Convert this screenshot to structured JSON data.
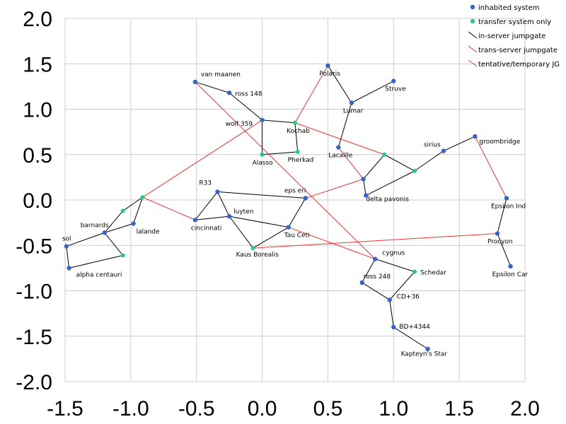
{
  "chart_data": {
    "type": "scatter",
    "title": "",
    "xlabel": "",
    "ylabel": "",
    "xlim": [
      -1.5,
      2.0
    ],
    "ylim": [
      -2.0,
      2.0
    ],
    "grid": true,
    "legend_placement": "top-right",
    "x_ticks": [
      "-1.5",
      "-1.0",
      "-0.5",
      "0.0",
      "0.5",
      "1.0",
      "1.5",
      "2.0"
    ],
    "y_ticks": [
      "2.0",
      "1.5",
      "1.0",
      "0.5",
      "0.0",
      "-0.5",
      "-1.0",
      "-1.5",
      "-2.0"
    ],
    "x_tick_values": [
      -1.5,
      -1.0,
      -0.5,
      0.0,
      0.5,
      1.0,
      1.5,
      2.0
    ],
    "y_tick_values": [
      2.0,
      1.5,
      1.0,
      0.5,
      0.0,
      -0.5,
      -1.0,
      -1.5,
      -2.0
    ],
    "legend": [
      {
        "label": "inhabited system",
        "kind": "inhabited"
      },
      {
        "label": "transfer system only",
        "kind": "transfer"
      },
      {
        "label": "in-server jumpgate",
        "kind": "in-server"
      },
      {
        "label": "trans-server jumpgate",
        "kind": "trans-server"
      },
      {
        "label": "tentative/temporary JG",
        "kind": "tentative"
      }
    ],
    "colors": {
      "inhabited": "#3366cc",
      "transfer": "#22cc88",
      "in-server": "#000000",
      "trans-server": "#ee3333",
      "tentative": "#cc33cc",
      "grid": "#cccccc"
    },
    "nodes": [
      {
        "id": "van-maanen",
        "label": "van maanen",
        "x": -0.51,
        "y": 1.3,
        "kind": "inhabited"
      },
      {
        "id": "ross-148",
        "label": "ross 148",
        "x": -0.25,
        "y": 1.18,
        "kind": "inhabited"
      },
      {
        "id": "wolf-359",
        "label": "wolf 359",
        "x": 0.0,
        "y": 0.88,
        "kind": "inhabited"
      },
      {
        "id": "kochab",
        "label": "Kochab",
        "x": 0.25,
        "y": 0.85,
        "kind": "transfer"
      },
      {
        "id": "alasso",
        "label": "Alasso",
        "x": 0.0,
        "y": 0.5,
        "kind": "transfer"
      },
      {
        "id": "pherkad",
        "label": "Pherkad",
        "x": 0.27,
        "y": 0.53,
        "kind": "transfer"
      },
      {
        "id": "polaris",
        "label": "Polaris",
        "x": 0.5,
        "y": 1.48,
        "kind": "inhabited"
      },
      {
        "id": "lumar",
        "label": "Lumar",
        "x": 0.68,
        "y": 1.07,
        "kind": "inhabited"
      },
      {
        "id": "struve",
        "label": "Struve",
        "x": 1.0,
        "y": 1.31,
        "kind": "inhabited"
      },
      {
        "id": "lacaille",
        "label": "Lacaille",
        "x": 0.58,
        "y": 0.58,
        "kind": "inhabited"
      },
      {
        "id": "sirius",
        "label": "sirius",
        "x": 1.38,
        "y": 0.54,
        "kind": "inhabited"
      },
      {
        "id": "groombridge",
        "label": "groombridge",
        "x": 1.62,
        "y": 0.7,
        "kind": "inhabited"
      },
      {
        "id": "junction-a",
        "label": "",
        "x": 0.93,
        "y": 0.5,
        "kind": "transfer"
      },
      {
        "id": "junction-b",
        "label": "",
        "x": 1.16,
        "y": 0.32,
        "kind": "transfer"
      },
      {
        "id": "delta-pavonis-hub",
        "label": "",
        "x": 0.77,
        "y": 0.23,
        "kind": "inhabited"
      },
      {
        "id": "delta-pavonis",
        "label": "delta pavonis",
        "x": 0.79,
        "y": 0.05,
        "kind": "inhabited"
      },
      {
        "id": "epsilon-ind",
        "label": "Epsilon Ind",
        "x": 1.86,
        "y": 0.02,
        "kind": "inhabited"
      },
      {
        "id": "procyon",
        "label": "Procyon",
        "x": 1.79,
        "y": -0.37,
        "kind": "inhabited"
      },
      {
        "id": "epsilon-car",
        "label": "Epsilon Car",
        "x": 1.89,
        "y": -0.73,
        "kind": "inhabited"
      },
      {
        "id": "r33",
        "label": "R33",
        "x": -0.34,
        "y": 0.09,
        "kind": "inhabited"
      },
      {
        "id": "eps-eri",
        "label": "eps eri",
        "x": 0.33,
        "y": 0.02,
        "kind": "inhabited"
      },
      {
        "id": "luyten",
        "label": "luyten",
        "x": -0.25,
        "y": -0.18,
        "kind": "inhabited"
      },
      {
        "id": "cincinnati",
        "label": "cincinnati",
        "x": -0.51,
        "y": -0.22,
        "kind": "inhabited"
      },
      {
        "id": "tau-ceti",
        "label": "Tau Ceti",
        "x": 0.2,
        "y": -0.3,
        "kind": "inhabited"
      },
      {
        "id": "kaus-borealis",
        "label": "Kaus Borealis",
        "x": -0.07,
        "y": -0.53,
        "kind": "transfer"
      },
      {
        "id": "west-hub",
        "label": "",
        "x": -0.91,
        "y": 0.03,
        "kind": "transfer"
      },
      {
        "id": "west-transfer",
        "label": "",
        "x": -1.06,
        "y": -0.12,
        "kind": "transfer"
      },
      {
        "id": "lalande",
        "label": "lalande",
        "x": -0.98,
        "y": -0.26,
        "kind": "inhabited"
      },
      {
        "id": "barnards",
        "label": "barnards",
        "x": -1.2,
        "y": -0.36,
        "kind": "inhabited"
      },
      {
        "id": "sol",
        "label": "sol",
        "x": -1.49,
        "y": -0.51,
        "kind": "inhabited"
      },
      {
        "id": "south-transfer",
        "label": "",
        "x": -1.06,
        "y": -0.61,
        "kind": "transfer"
      },
      {
        "id": "alpha-centauri",
        "label": "alpha centauri",
        "x": -1.47,
        "y": -0.75,
        "kind": "inhabited"
      },
      {
        "id": "cygnus",
        "label": "cygnus",
        "x": 0.86,
        "y": -0.65,
        "kind": "inhabited"
      },
      {
        "id": "schedar",
        "label": "Schedar",
        "x": 1.16,
        "y": -0.79,
        "kind": "transfer"
      },
      {
        "id": "ross-248",
        "label": "ross 248",
        "x": 0.76,
        "y": -0.91,
        "kind": "inhabited"
      },
      {
        "id": "cd-36",
        "label": "CD+36",
        "x": 0.97,
        "y": -1.1,
        "kind": "inhabited"
      },
      {
        "id": "bd-4344",
        "label": "BD+4344",
        "x": 1.0,
        "y": -1.4,
        "kind": "inhabited"
      },
      {
        "id": "kapteyns-star",
        "label": "Kapteyn's Star",
        "x": 1.26,
        "y": -1.64,
        "kind": "inhabited"
      }
    ],
    "edges": [
      {
        "from": "van-maanen",
        "to": "ross-148",
        "kind": "in-server"
      },
      {
        "from": "ross-148",
        "to": "wolf-359",
        "kind": "in-server"
      },
      {
        "from": "wolf-359",
        "to": "kochab",
        "kind": "in-server"
      },
      {
        "from": "wolf-359",
        "to": "alasso",
        "kind": "in-server"
      },
      {
        "from": "kochab",
        "to": "pherkad",
        "kind": "in-server"
      },
      {
        "from": "alasso",
        "to": "pherkad",
        "kind": "in-server"
      },
      {
        "from": "polaris",
        "to": "lumar",
        "kind": "in-server"
      },
      {
        "from": "lumar",
        "to": "struve",
        "kind": "in-server"
      },
      {
        "from": "lumar",
        "to": "lacaille",
        "kind": "in-server"
      },
      {
        "from": "delta-pavonis-hub",
        "to": "junction-a",
        "kind": "in-server"
      },
      {
        "from": "junction-a",
        "to": "junction-b",
        "kind": "in-server"
      },
      {
        "from": "junction-b",
        "to": "sirius",
        "kind": "in-server"
      },
      {
        "from": "sirius",
        "to": "groombridge",
        "kind": "in-server"
      },
      {
        "from": "delta-pavonis-hub",
        "to": "delta-pavonis",
        "kind": "in-server"
      },
      {
        "from": "delta-pavonis",
        "to": "junction-b",
        "kind": "in-server"
      },
      {
        "from": "epsilon-ind",
        "to": "procyon",
        "kind": "in-server"
      },
      {
        "from": "procyon",
        "to": "epsilon-car",
        "kind": "in-server"
      },
      {
        "from": "r33",
        "to": "eps-eri",
        "kind": "in-server"
      },
      {
        "from": "r33",
        "to": "cincinnati",
        "kind": "in-server"
      },
      {
        "from": "r33",
        "to": "luyten",
        "kind": "in-server"
      },
      {
        "from": "cincinnati",
        "to": "luyten",
        "kind": "in-server"
      },
      {
        "from": "luyten",
        "to": "tau-ceti",
        "kind": "in-server"
      },
      {
        "from": "luyten",
        "to": "kaus-borealis",
        "kind": "in-server"
      },
      {
        "from": "eps-eri",
        "to": "tau-ceti",
        "kind": "in-server"
      },
      {
        "from": "tau-ceti",
        "to": "kaus-borealis",
        "kind": "in-server"
      },
      {
        "from": "west-hub",
        "to": "lalande",
        "kind": "in-server"
      },
      {
        "from": "west-hub",
        "to": "west-transfer",
        "kind": "in-server"
      },
      {
        "from": "west-transfer",
        "to": "barnards",
        "kind": "in-server"
      },
      {
        "from": "lalande",
        "to": "barnards",
        "kind": "in-server"
      },
      {
        "from": "barnards",
        "to": "sol",
        "kind": "in-server"
      },
      {
        "from": "barnards",
        "to": "south-transfer",
        "kind": "in-server"
      },
      {
        "from": "sol",
        "to": "alpha-centauri",
        "kind": "in-server"
      },
      {
        "from": "alpha-centauri",
        "to": "south-transfer",
        "kind": "in-server"
      },
      {
        "from": "cygnus",
        "to": "schedar",
        "kind": "in-server"
      },
      {
        "from": "cygnus",
        "to": "ross-248",
        "kind": "in-server"
      },
      {
        "from": "schedar",
        "to": "cd-36",
        "kind": "in-server"
      },
      {
        "from": "ross-248",
        "to": "cd-36",
        "kind": "in-server"
      },
      {
        "from": "cd-36",
        "to": "bd-4344",
        "kind": "in-server"
      },
      {
        "from": "bd-4344",
        "to": "kapteyns-star",
        "kind": "in-server"
      },
      {
        "from": "van-maanen",
        "to": "cygnus",
        "kind": "trans-server"
      },
      {
        "from": "kochab",
        "to": "polaris",
        "kind": "trans-server"
      },
      {
        "from": "wolf-359",
        "to": "west-hub",
        "kind": "trans-server"
      },
      {
        "from": "west-hub",
        "to": "cincinnati",
        "kind": "trans-server"
      },
      {
        "from": "kochab",
        "to": "junction-a",
        "kind": "trans-server"
      },
      {
        "from": "lacaille",
        "to": "delta-pavonis-hub",
        "kind": "trans-server"
      },
      {
        "from": "eps-eri",
        "to": "delta-pavonis-hub",
        "kind": "trans-server"
      },
      {
        "from": "groombridge",
        "to": "epsilon-ind",
        "kind": "trans-server"
      },
      {
        "from": "kaus-borealis",
        "to": "procyon",
        "kind": "trans-server"
      },
      {
        "from": "tau-ceti",
        "to": "cygnus",
        "kind": "trans-server"
      }
    ]
  }
}
